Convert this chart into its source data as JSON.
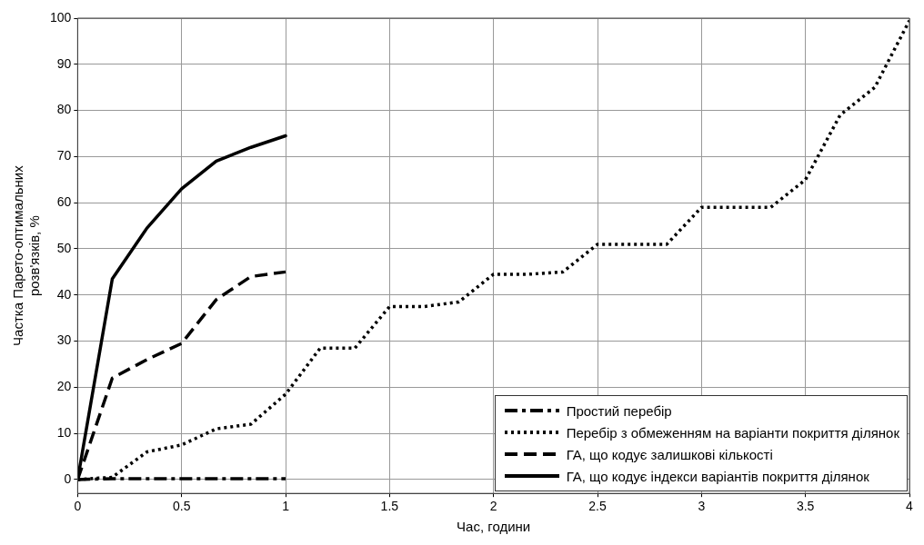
{
  "chart_data": {
    "type": "line",
    "xlabel": "Час, години",
    "ylabel": "Частка Парето-оптимальних розв'язків, %",
    "xlim": [
      0,
      4
    ],
    "ylim": [
      -3,
      100
    ],
    "xticks": [
      0,
      0.5,
      1,
      1.5,
      2,
      2.5,
      3,
      3.5,
      4
    ],
    "yticks": [
      0,
      10,
      20,
      30,
      40,
      50,
      60,
      70,
      80,
      90,
      100
    ],
    "grid": true,
    "legend": "bottom right",
    "marker": "none",
    "series": [
      {
        "name": "Простий перебір",
        "color": "#000000",
        "line_style": "dashdot",
        "x": [
          0,
          0.1667,
          0.3333,
          0.5,
          0.6667,
          0.8333,
          1
        ],
        "values": [
          0,
          0.2,
          0.2,
          0.2,
          0.2,
          0.2,
          0.2
        ]
      },
      {
        "name": "Перебір з обмеженням на варіанти покриття ділянок",
        "color": "#000000",
        "line_style": "dotted",
        "x": [
          0,
          0.1667,
          0.3333,
          0.5,
          0.6667,
          0.8333,
          1,
          1.1667,
          1.3333,
          1.5,
          1.6667,
          1.8333,
          2,
          2.1667,
          2.3333,
          2.5,
          2.6667,
          2.8333,
          3,
          3.1667,
          3.3333,
          3.5,
          3.6667,
          3.8333,
          4
        ],
        "values": [
          0,
          0.5,
          6,
          7.5,
          11,
          12,
          18.5,
          28.5,
          28.5,
          37.5,
          37.5,
          38.5,
          44.5,
          44.5,
          45,
          51,
          51,
          51,
          59,
          59,
          59,
          65,
          79,
          85,
          99.5
        ]
      },
      {
        "name": "ГА, що кодує залишкові кількості",
        "color": "#000000",
        "line_style": "dashed",
        "x": [
          0,
          0.1667,
          0.3333,
          0.5,
          0.6667,
          0.8333,
          1
        ],
        "values": [
          0,
          22,
          26,
          29.5,
          39,
          44,
          45
        ]
      },
      {
        "name": "ГА, що кодує індекси варіантів покриття ділянок",
        "color": "#000000",
        "line_style": "solid",
        "x": [
          0,
          0.1667,
          0.3333,
          0.5,
          0.6667,
          0.8333,
          1
        ],
        "values": [
          0,
          43.5,
          54.5,
          63,
          69,
          72,
          74.5
        ]
      }
    ]
  }
}
